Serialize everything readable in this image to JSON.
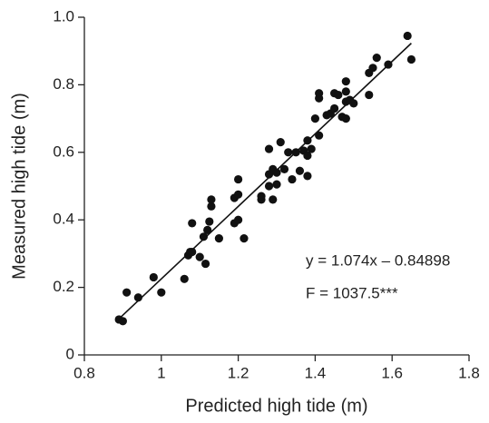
{
  "chart_data": {
    "type": "scatter",
    "x_label": "Predicted high tide (m)",
    "y_label": "Measured high tide (m)",
    "annotations": [
      "y = 1.074x – 0.84898",
      "F = 1037.5***"
    ],
    "color": "#111111",
    "x": [
      0.89,
      0.9,
      0.91,
      0.94,
      0.98,
      1.0,
      1.06,
      1.07,
      1.075,
      1.08,
      1.08,
      1.1,
      1.11,
      1.115,
      1.12,
      1.125,
      1.13,
      1.13,
      1.15,
      1.19,
      1.19,
      1.2,
      1.2,
      1.2,
      1.215,
      1.26,
      1.26,
      1.28,
      1.28,
      1.28,
      1.29,
      1.29,
      1.3,
      1.3,
      1.31,
      1.32,
      1.33,
      1.34,
      1.35,
      1.36,
      1.37,
      1.38,
      1.38,
      1.38,
      1.39,
      1.4,
      1.41,
      1.41,
      1.41,
      1.43,
      1.44,
      1.45,
      1.45,
      1.46,
      1.47,
      1.48,
      1.48,
      1.48,
      1.48,
      1.49,
      1.5,
      1.54,
      1.54,
      1.55,
      1.56,
      1.59,
      1.64,
      1.65
    ],
    "values": [
      0.105,
      0.1,
      0.185,
      0.17,
      0.23,
      0.185,
      0.225,
      0.295,
      0.305,
      0.305,
      0.39,
      0.29,
      0.35,
      0.27,
      0.37,
      0.395,
      0.44,
      0.46,
      0.345,
      0.39,
      0.465,
      0.475,
      0.52,
      0.4,
      0.345,
      0.46,
      0.47,
      0.5,
      0.535,
      0.61,
      0.55,
      0.46,
      0.54,
      0.505,
      0.63,
      0.55,
      0.6,
      0.52,
      0.6,
      0.545,
      0.605,
      0.59,
      0.635,
      0.53,
      0.61,
      0.7,
      0.76,
      0.775,
      0.65,
      0.71,
      0.715,
      0.73,
      0.775,
      0.77,
      0.705,
      0.7,
      0.75,
      0.78,
      0.81,
      0.755,
      0.745,
      0.77,
      0.835,
      0.85,
      0.88,
      0.86,
      0.945,
      0.875
    ],
    "trendline": {
      "x": [
        0.89,
        1.65
      ],
      "y": [
        0.107,
        0.923
      ]
    },
    "xlim": [
      0.8,
      1.8
    ],
    "xticks": [
      0.8,
      1,
      1.2,
      1.4,
      1.6,
      1.8
    ],
    "ylim": [
      0,
      1
    ],
    "yticks": [
      0,
      0.2,
      0.4,
      0.6,
      0.8,
      {
        "value": 1,
        "label": "1.0"
      }
    ]
  }
}
